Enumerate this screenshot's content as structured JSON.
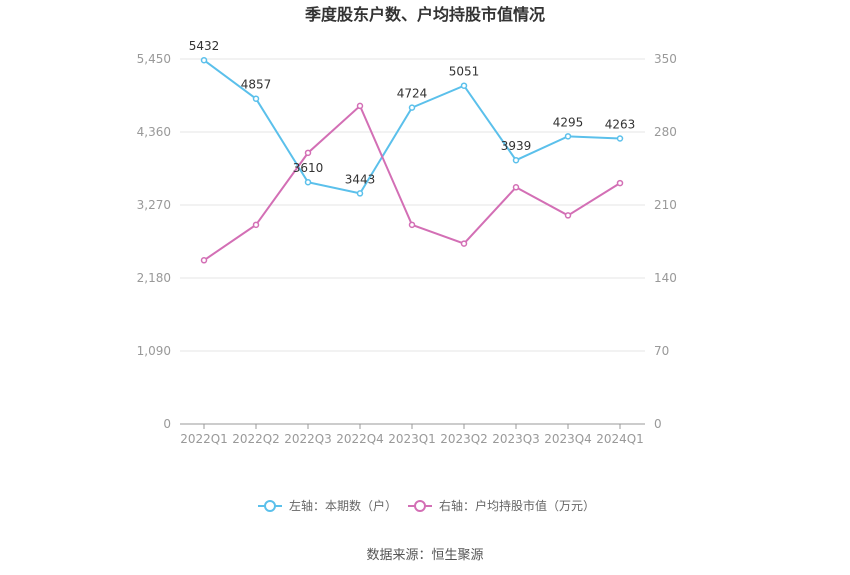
{
  "chart_data": {
    "type": "line",
    "title": "季度股东户数、户均持股市值情况",
    "categories": [
      "2022Q1",
      "2022Q2",
      "2022Q3",
      "2022Q4",
      "2023Q1",
      "2023Q2",
      "2023Q3",
      "2023Q4",
      "2024Q1"
    ],
    "y_left": {
      "ticks": [
        "0",
        "1,090",
        "2,180",
        "3,270",
        "4,360",
        "5,450"
      ],
      "range": [
        0,
        5450
      ]
    },
    "y_right": {
      "ticks": [
        "0",
        "70",
        "140",
        "210",
        "280",
        "350"
      ],
      "range": [
        0,
        350
      ]
    },
    "series": [
      {
        "name": "左轴：本期数（户）",
        "axis": "left",
        "color": "#5bc0eb",
        "values": [
          5432,
          4857,
          3610,
          3443,
          4724,
          5051,
          3939,
          4295,
          4263
        ],
        "labels": [
          "5432",
          "4857",
          "3610",
          "3443",
          "4724",
          "5051",
          "3939",
          "4295",
          "4263"
        ]
      },
      {
        "name": "右轴：户均持股市值（万元）",
        "axis": "right",
        "color": "#d36fb5",
        "values": [
          157,
          191,
          260,
          305,
          191,
          173,
          227,
          200,
          231
        ]
      }
    ],
    "grid": true,
    "legend_position": "bottom"
  },
  "source": "数据来源：恒生聚源"
}
